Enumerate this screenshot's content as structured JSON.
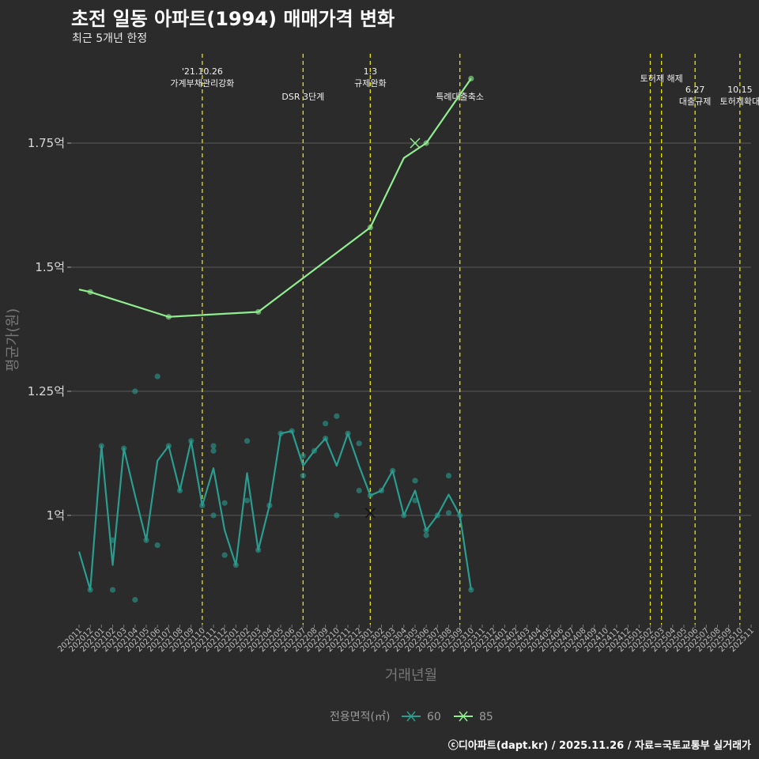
{
  "title": "초전 일동 아파트(1994) 매매가격 변화",
  "subtitle": "최근 5개년 한정",
  "footer": "ⓒ디아파트(dapt.kr) / 2025.11.26 / 자료=국토교통부 실거래가",
  "chart_data": {
    "type": "line",
    "xlabel": "거래년월",
    "ylabel": "평균가(원)",
    "ylim": [
      0.78,
      1.93
    ],
    "x_categories": [
      "202011",
      "202012",
      "202101",
      "202102",
      "202103",
      "202104",
      "202105",
      "202106",
      "202107",
      "202108",
      "202109",
      "202110",
      "202111",
      "202112",
      "202201",
      "202202",
      "202203",
      "202204",
      "202205",
      "202206",
      "202207",
      "202208",
      "202209",
      "202210",
      "202211",
      "202212",
      "202301",
      "202302",
      "202303",
      "202304",
      "202305",
      "202306",
      "202307",
      "202308",
      "202309",
      "202310",
      "202311",
      "202312",
      "202401",
      "202402",
      "202403",
      "202404",
      "202405",
      "202406",
      "202407",
      "202408",
      "202409",
      "202410",
      "202411",
      "202412",
      "202501",
      "202502",
      "202503",
      "202504",
      "202505",
      "202506",
      "202507",
      "202508",
      "202509",
      "202510",
      "202511"
    ],
    "y_ticks": [
      {
        "value": 1.0,
        "label": "1억"
      },
      {
        "value": 1.25,
        "label": "1.25억"
      },
      {
        "value": 1.5,
        "label": "1.5억"
      },
      {
        "value": 1.75,
        "label": "1.75억"
      }
    ],
    "legend": {
      "title": "전용면적(㎡)",
      "entries": [
        "60",
        "85"
      ],
      "position": "bottom"
    },
    "series": [
      {
        "name": "60",
        "color": "#2a9d8f",
        "line": [
          [
            "202011",
            0.927
          ],
          [
            "202012",
            0.85
          ],
          [
            "202101",
            1.14
          ],
          [
            "202102",
            0.9
          ],
          [
            "202103",
            1.135
          ],
          [
            "202104",
            1.04
          ],
          [
            "202105",
            0.95
          ],
          [
            "202106",
            1.11
          ],
          [
            "202107",
            1.14
          ],
          [
            "202108",
            1.05
          ],
          [
            "202109",
            1.15
          ],
          [
            "202110",
            1.02
          ],
          [
            "202111",
            1.095
          ],
          [
            "202112",
            0.97
          ],
          [
            "202201",
            0.9
          ],
          [
            "202202",
            1.085
          ],
          [
            "202203",
            0.93
          ],
          [
            "202204",
            1.02
          ],
          [
            "202205",
            1.165
          ],
          [
            "202206",
            1.17
          ],
          [
            "202207",
            1.1
          ],
          [
            "202208",
            1.13
          ],
          [
            "202209",
            1.155
          ],
          [
            "202210",
            1.1
          ],
          [
            "202211",
            1.165
          ],
          [
            "202212",
            1.1
          ],
          [
            "202301",
            1.04
          ],
          [
            "202302",
            1.05
          ],
          [
            "202303",
            1.09
          ],
          [
            "202304",
            1.0
          ],
          [
            "202305",
            1.05
          ],
          [
            "202306",
            0.97
          ],
          [
            "202307",
            1.0
          ],
          [
            "202308",
            1.042
          ],
          [
            "202309",
            1.0
          ],
          [
            "202310",
            0.85
          ]
        ],
        "points": [
          [
            "202012",
            0.85
          ],
          [
            "202101",
            1.14
          ],
          [
            "202102",
            0.95
          ],
          [
            "202102",
            0.85
          ],
          [
            "202103",
            1.135
          ],
          [
            "202104",
            1.25
          ],
          [
            "202104",
            0.83
          ],
          [
            "202105",
            0.95
          ],
          [
            "202106",
            1.28
          ],
          [
            "202106",
            0.94
          ],
          [
            "202107",
            1.14
          ],
          [
            "202108",
            1.05
          ],
          [
            "202109",
            1.15
          ],
          [
            "202110",
            1.02
          ],
          [
            "202111",
            1.14
          ],
          [
            "202111",
            1.13
          ],
          [
            "202111",
            1.0
          ],
          [
            "202112",
            0.92
          ],
          [
            "202112",
            1.025
          ],
          [
            "202201",
            0.9
          ],
          [
            "202202",
            1.03
          ],
          [
            "202202",
            1.15
          ],
          [
            "202203",
            0.93
          ],
          [
            "202204",
            1.02
          ],
          [
            "202205",
            1.165
          ],
          [
            "202206",
            1.17
          ],
          [
            "202207",
            1.12
          ],
          [
            "202207",
            1.08
          ],
          [
            "202208",
            1.13
          ],
          [
            "202209",
            1.185
          ],
          [
            "202209",
            1.155
          ],
          [
            "202210",
            1.2
          ],
          [
            "202210",
            1.0
          ],
          [
            "202211",
            1.165
          ],
          [
            "202212",
            1.05
          ],
          [
            "202212",
            1.145
          ],
          [
            "202301",
            1.04
          ],
          [
            "202302",
            1.05
          ],
          [
            "202303",
            1.09
          ],
          [
            "202304",
            1.0
          ],
          [
            "202305",
            1.07
          ],
          [
            "202305",
            1.03
          ],
          [
            "202306",
            0.96
          ],
          [
            "202306",
            0.97
          ],
          [
            "202307",
            1.0
          ],
          [
            "202308",
            1.08
          ],
          [
            "202308",
            1.005
          ],
          [
            "202309",
            1.0
          ],
          [
            "202310",
            0.85
          ]
        ],
        "x_markers": [
          [
            "202301",
            1.005
          ]
        ]
      },
      {
        "name": "85",
        "color": "#90ee90",
        "line": [
          [
            "202011",
            1.455
          ],
          [
            "202012",
            1.45
          ],
          [
            "202107",
            1.4
          ],
          [
            "202203",
            1.41
          ],
          [
            "202301",
            1.58
          ],
          [
            "202304",
            1.72
          ],
          [
            "202306",
            1.75
          ],
          [
            "202310",
            1.88
          ]
        ],
        "points": [
          [
            "202012",
            1.45
          ],
          [
            "202107",
            1.4
          ],
          [
            "202203",
            1.41
          ],
          [
            "202301",
            1.58
          ],
          [
            "202306",
            1.75
          ],
          [
            "202310",
            1.88
          ]
        ],
        "x_markers": [
          [
            "202305",
            1.75
          ]
        ]
      }
    ],
    "annotations": [
      {
        "x": "202110",
        "lines": [
          "'21.10.26",
          "가계부채관리강화"
        ],
        "row": "top"
      },
      {
        "x": "202207",
        "lines": [
          "DSR 3단계"
        ],
        "row": "low"
      },
      {
        "x": "202301",
        "lines": [
          "1.3",
          "규제완화"
        ],
        "row": "top"
      },
      {
        "x": "202309",
        "lines": [
          "특례대출축소"
        ],
        "row": "low"
      },
      {
        "x": "202502",
        "lines": [],
        "row": "none"
      },
      {
        "x": "202503",
        "lines": [
          "토허제 해제"
        ],
        "row": "high"
      },
      {
        "x": "202506",
        "lines": [
          "6.27",
          "대출규제"
        ],
        "row": "mid"
      },
      {
        "x": "202510",
        "lines": [
          "10.15",
          "토허제확대"
        ],
        "row": "mid"
      }
    ]
  }
}
